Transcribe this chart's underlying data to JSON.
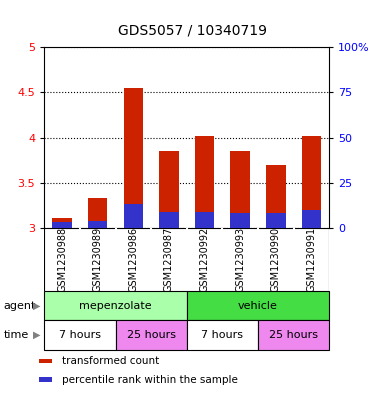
{
  "title": "GDS5057 / 10340719",
  "samples": [
    "GSM1230988",
    "GSM1230989",
    "GSM1230986",
    "GSM1230987",
    "GSM1230992",
    "GSM1230993",
    "GSM1230990",
    "GSM1230991"
  ],
  "red_values": [
    3.11,
    3.33,
    4.55,
    3.85,
    4.02,
    3.85,
    3.7,
    4.02
  ],
  "blue_values": [
    3.07,
    3.08,
    3.27,
    3.18,
    3.18,
    3.17,
    3.16,
    3.2
  ],
  "baseline": 3.0,
  "ylim_left": [
    3.0,
    5.0
  ],
  "ylim_right": [
    0,
    100
  ],
  "yticks_left": [
    3.0,
    3.5,
    4.0,
    4.5,
    5.0
  ],
  "yticks_right": [
    0,
    25,
    50,
    75,
    100
  ],
  "bar_color": "#CC2200",
  "blue_color": "#3333CC",
  "agent_groups": [
    {
      "label": "mepenzolate",
      "start": 0,
      "end": 4,
      "color": "#AAFFAA"
    },
    {
      "label": "vehicle",
      "start": 4,
      "end": 8,
      "color": "#44DD44"
    }
  ],
  "time_groups": [
    {
      "label": "7 hours",
      "start": 0,
      "end": 2,
      "color": "#FFFFFF"
    },
    {
      "label": "25 hours",
      "start": 2,
      "end": 4,
      "color": "#EE88EE"
    },
    {
      "label": "7 hours",
      "start": 4,
      "end": 6,
      "color": "#FFFFFF"
    },
    {
      "label": "25 hours",
      "start": 6,
      "end": 8,
      "color": "#EE88EE"
    }
  ],
  "legend_items": [
    {
      "label": "transformed count",
      "color": "#CC2200"
    },
    {
      "label": "percentile rank within the sample",
      "color": "#3333CC"
    }
  ],
  "bar_width": 0.55,
  "gray_bg": "#CCCCCC",
  "white_border": "#FFFFFF",
  "title_fontsize": 10,
  "tick_fontsize": 8,
  "sample_fontsize": 7,
  "label_fontsize": 8,
  "row_label_fontsize": 8
}
